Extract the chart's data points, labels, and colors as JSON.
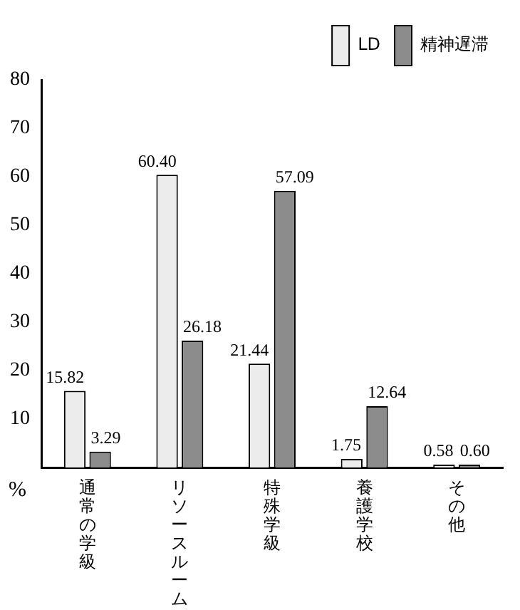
{
  "chart_data": {
    "type": "bar",
    "ylabel": "%",
    "categories": [
      "通常の学級",
      "リソースルーム",
      "特殊学級",
      "養護学校",
      "その他"
    ],
    "series": [
      {
        "name": "LD",
        "color": "#ececec",
        "values": [
          15.82,
          60.4,
          21.44,
          1.75,
          0.58
        ],
        "value_labels": [
          "15.82",
          "60.40",
          "21.44",
          "1.75",
          "0.58"
        ]
      },
      {
        "name": "精神遅滞",
        "color": "#8c8c8c",
        "values": [
          3.29,
          26.18,
          57.09,
          12.64,
          0.6
        ],
        "value_labels": [
          "3.29",
          "26.18",
          "57.09",
          "12.64",
          "0.60"
        ]
      }
    ],
    "ylim": [
      0,
      80
    ],
    "yticks": [
      10,
      20,
      30,
      40,
      50,
      60,
      70,
      80
    ],
    "grid": false,
    "legend": "top right"
  }
}
